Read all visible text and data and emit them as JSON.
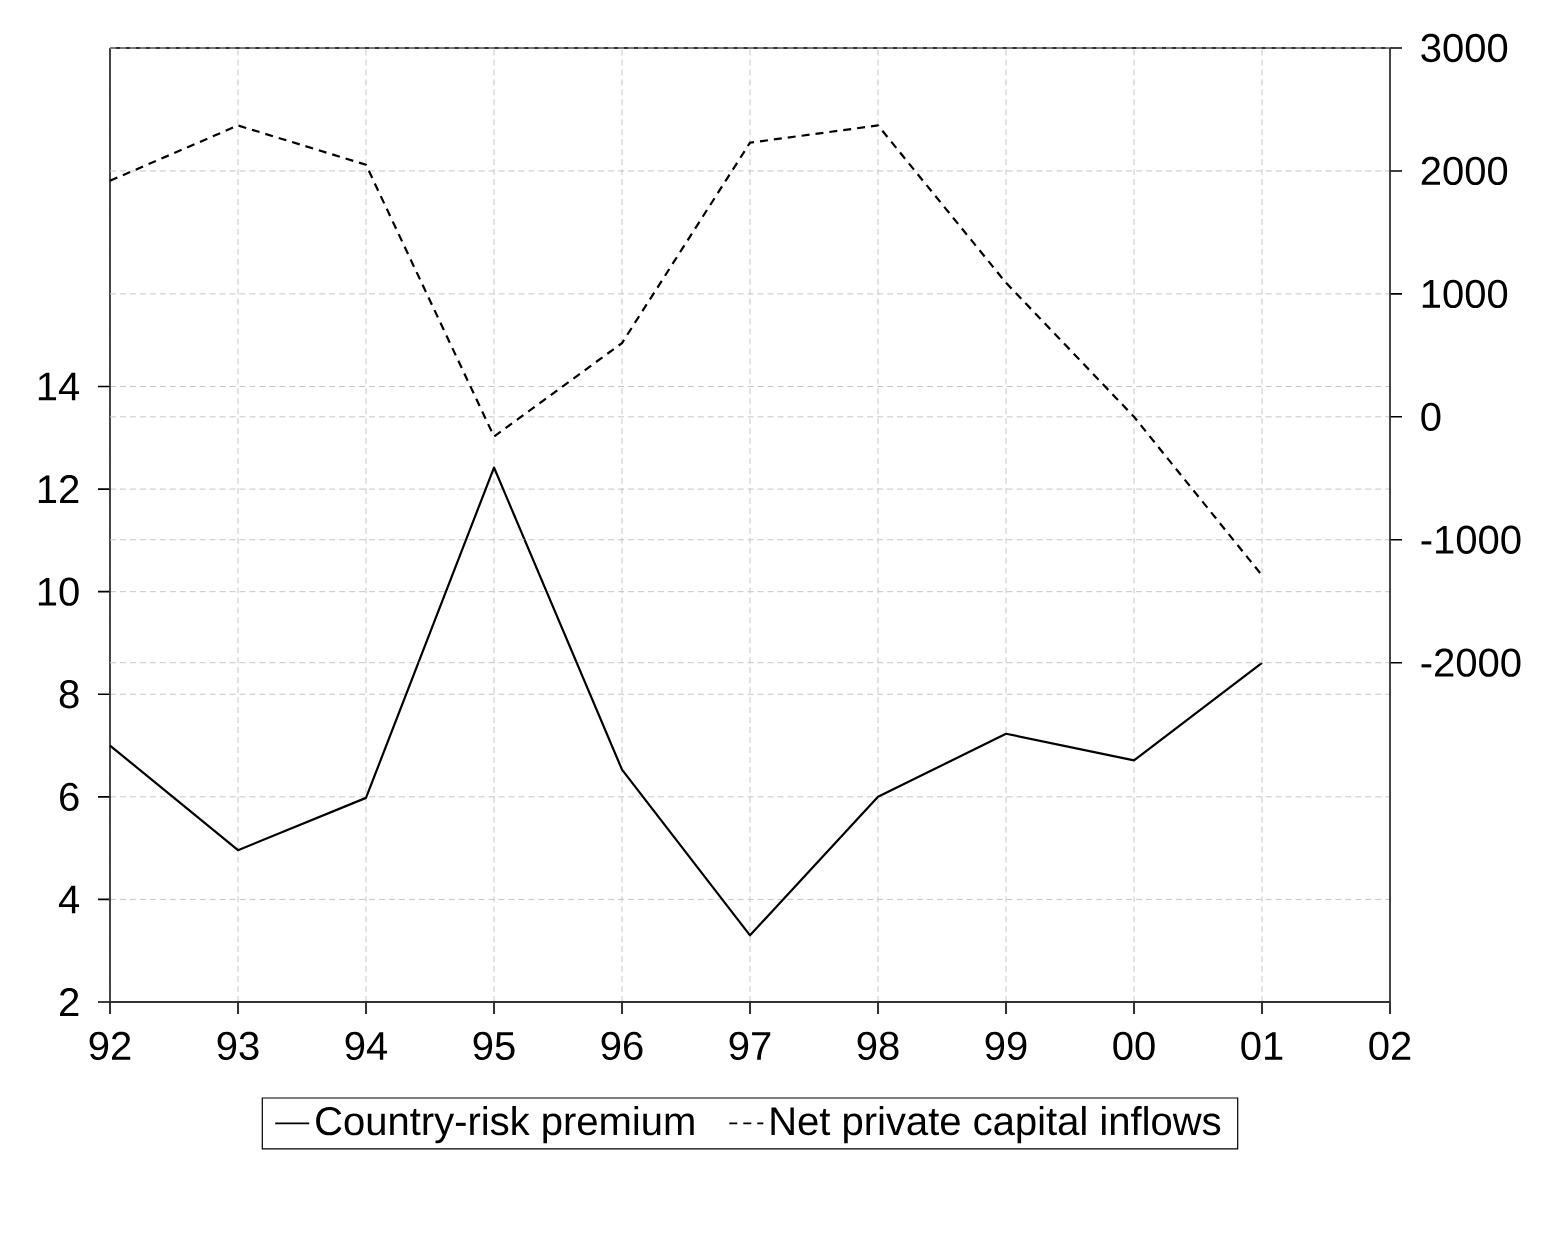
{
  "chart_data": {
    "type": "line",
    "categories": [
      "92",
      "93",
      "94",
      "95",
      "96",
      "97",
      "98",
      "99",
      "00",
      "01",
      "02"
    ],
    "series": [
      {
        "name": "Country-risk premium",
        "color": "#000000",
        "line_style": "solid",
        "values": [
          7.0,
          4.96,
          5.98,
          12.42,
          6.53,
          3.3,
          6.0,
          7.23,
          6.71,
          8.61,
          null
        ]
      },
      {
        "name": "Net private capital inflows",
        "color": "#000000",
        "line_style": "dashed",
        "axis": "y2",
        "values": [
          1920,
          2370,
          2050,
          -160,
          600,
          2230,
          2370,
          1090,
          0,
          -1290,
          null
        ]
      }
    ],
    "ylim": [
      2,
      20.6
    ],
    "yticks": [
      2,
      4,
      6,
      8,
      10,
      12,
      14
    ],
    "y2lim": [
      -4760,
      3000
    ],
    "y2ticks": [
      -2000,
      -1000,
      0,
      1000,
      2000,
      3000
    ],
    "grid": true,
    "legend": "bottom"
  }
}
